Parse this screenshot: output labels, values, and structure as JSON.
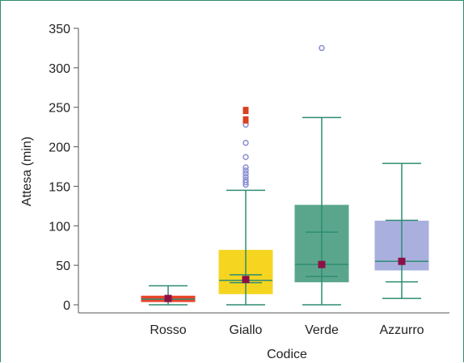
{
  "chart_data": {
    "type": "box",
    "title": "",
    "xlabel": "Codice",
    "ylabel": "Attesa (min)",
    "ylim": [
      0,
      350
    ],
    "yticks": [
      0,
      50,
      100,
      150,
      200,
      250,
      300,
      350
    ],
    "ytick_labels": [
      "0",
      "50",
      "100",
      "150",
      "200",
      "250",
      "300",
      "350"
    ],
    "grid": false,
    "legend": "none",
    "categories": [
      "Rosso",
      "Giallo",
      "Verde",
      "Azzurro"
    ],
    "boxes": [
      {
        "category": "Rosso",
        "min": 0,
        "q1": 4,
        "median": 7,
        "q3": 11,
        "max": 24,
        "lower_cap": 0,
        "upper_cap": 24,
        "mean": 8,
        "color": "#e8452a",
        "outliers": []
      },
      {
        "category": "Giallo",
        "min": 0,
        "q1": 14,
        "median": 31,
        "q3": 69,
        "max": 145,
        "lower_cap": 0,
        "upper_cap": 145,
        "inner_upper": 38,
        "inner_lower": 28,
        "mean": 32,
        "color": "#f5d520",
        "outliers": [
          152,
          155,
          158,
          162,
          166,
          170,
          174,
          187,
          205,
          228
        ],
        "extreme_outliers": [
          233,
          235,
          245,
          247
        ]
      },
      {
        "category": "Verde",
        "min": 0,
        "q1": 29,
        "median": 51,
        "q3": 126,
        "max": 237,
        "lower_cap": 0,
        "upper_cap": 237,
        "inner_upper": 92,
        "inner_lower": 36,
        "mean": 51,
        "color": "#5aa68c",
        "outliers": [
          325
        ]
      },
      {
        "category": "Azzurro",
        "min": 8,
        "q1": 44,
        "median": 55,
        "q3": 106,
        "max": 179,
        "lower_cap": 8,
        "upper_cap": 179,
        "inner_upper": 107,
        "inner_lower": 29,
        "mean": 55,
        "color": "#a9b0de",
        "outliers": []
      }
    ],
    "colors": {
      "whisker": "#2e8c72",
      "median": "#2e8c72",
      "mean_marker": "#8c1048",
      "outlier": "#8a8fd0",
      "extreme_outlier": "#d94020",
      "frame": "#2e8c72"
    }
  }
}
